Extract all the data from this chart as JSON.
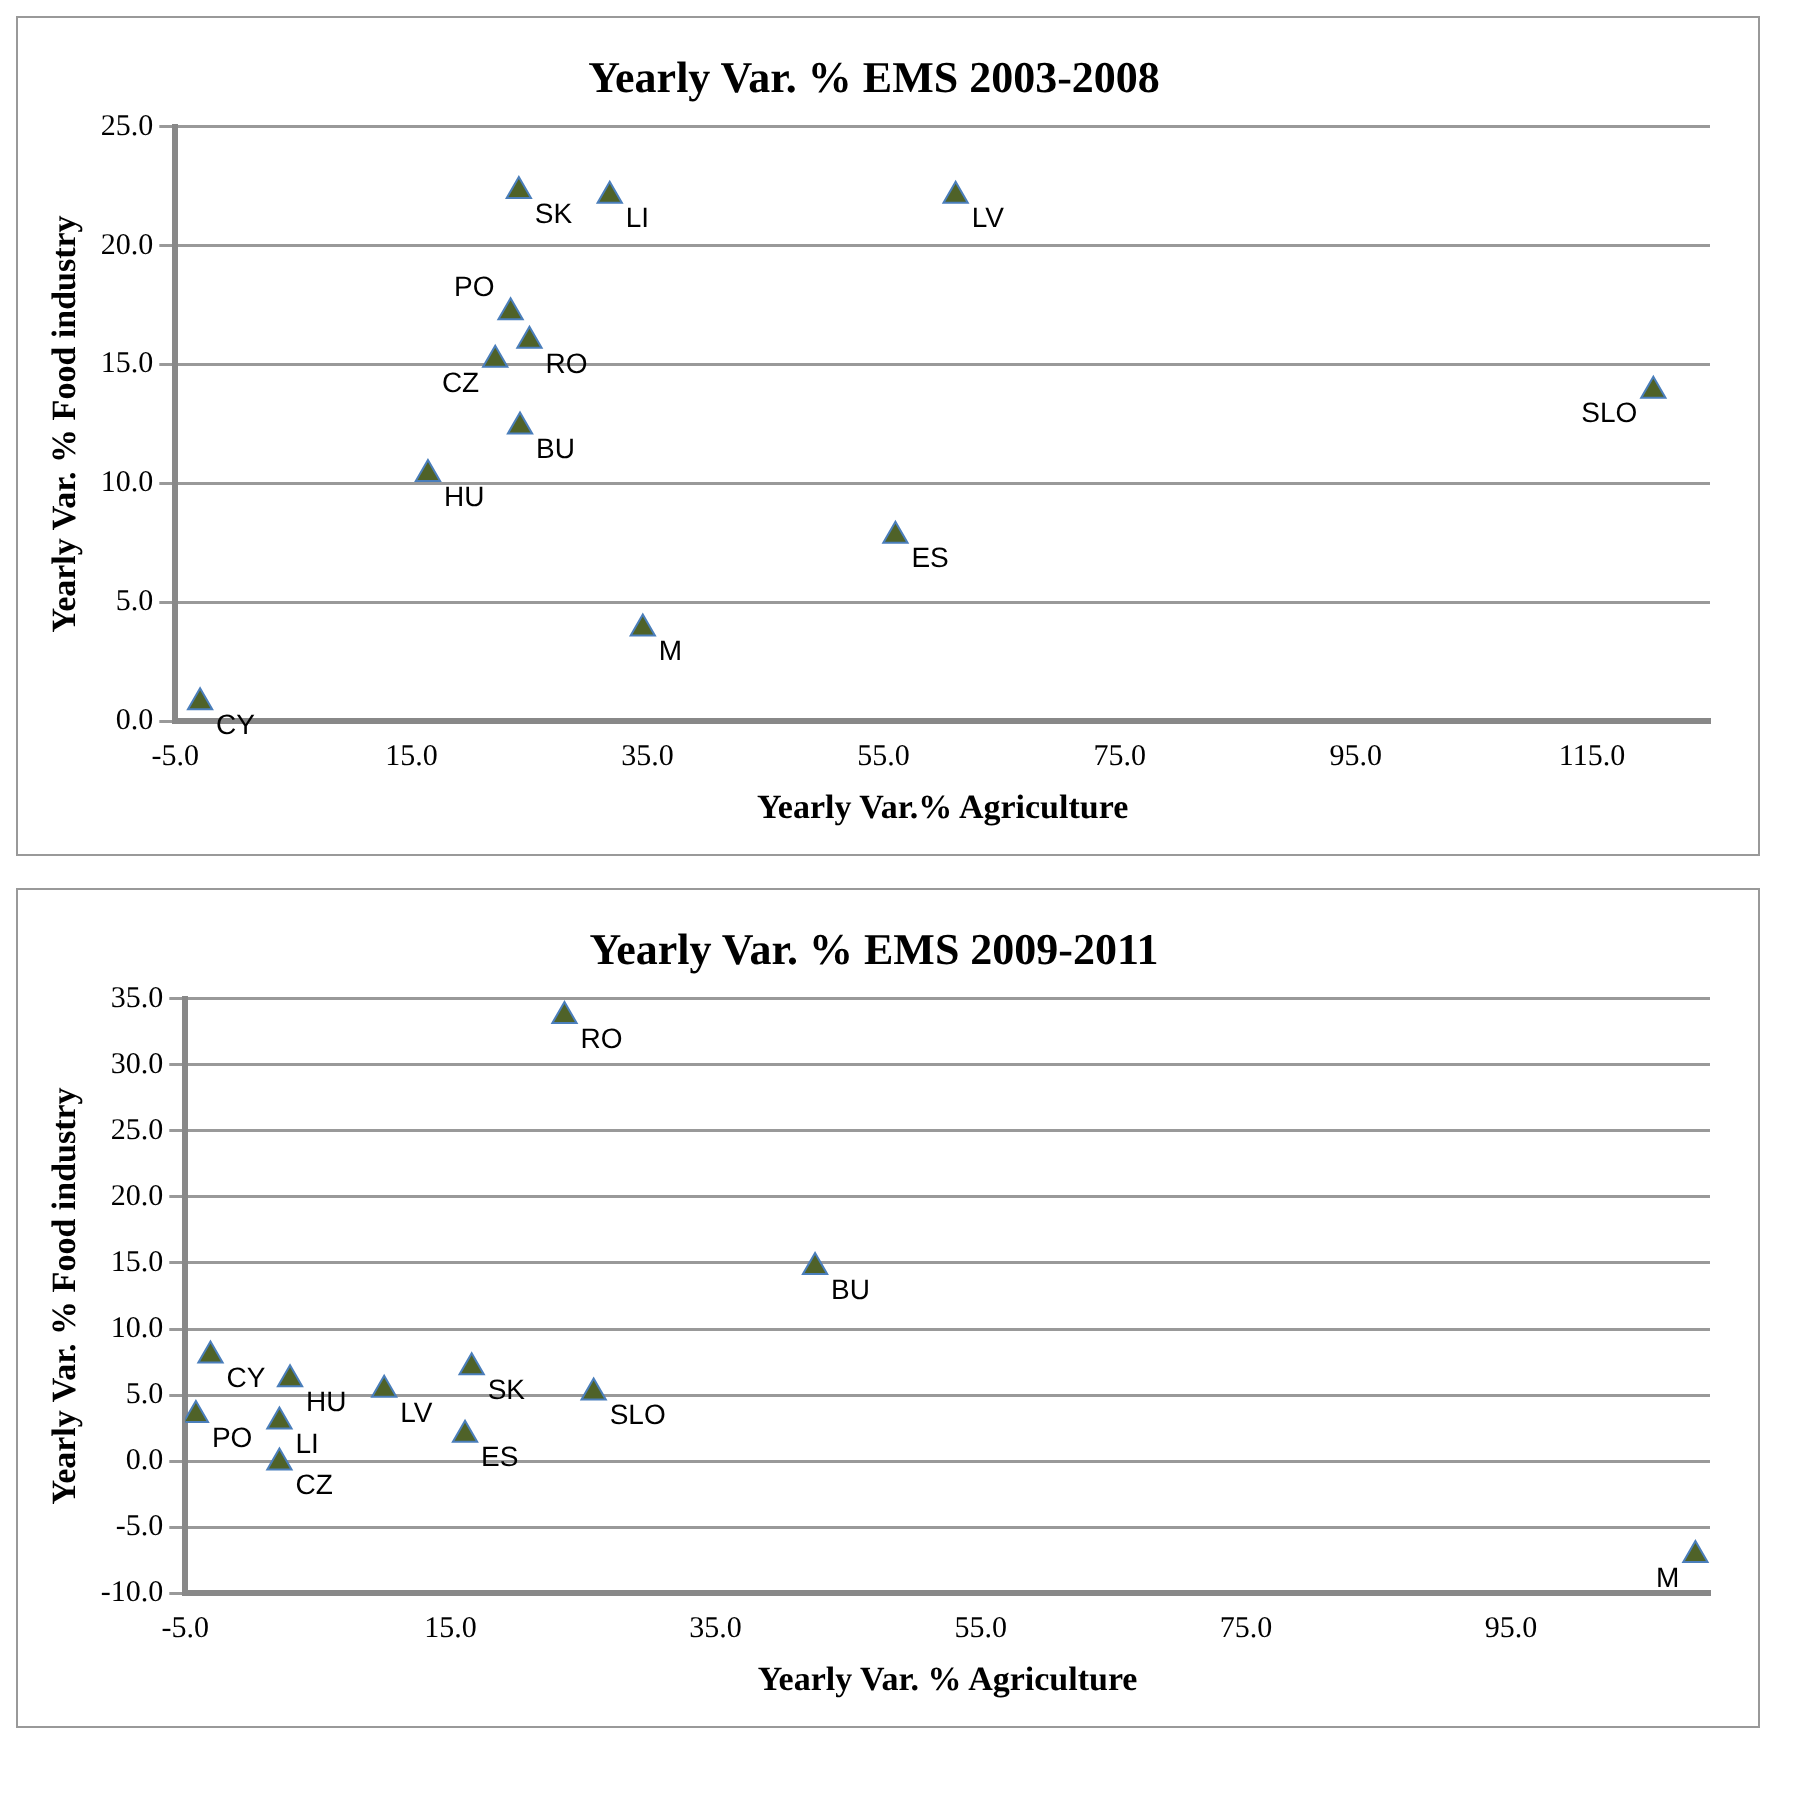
{
  "chart_data": [
    {
      "type": "scatter",
      "title": "Yearly Var. % EMS 2003-2008",
      "xlabel": "Yearly Var.% Agriculture",
      "ylabel": "Yearly Var. % Food industry",
      "color": "#4f6228",
      "marker": "triangle",
      "grid": "y",
      "legend": false,
      "x": [
        24.1,
        31.8,
        61.1,
        23.4,
        25.0,
        22.1,
        24.2,
        16.4,
        56.0,
        120.2,
        34.6,
        -2.9
      ],
      "values": [
        22.3,
        22.1,
        22.1,
        17.2,
        16.0,
        15.2,
        12.4,
        10.4,
        7.8,
        13.9,
        3.9,
        0.8
      ],
      "xlim": [
        -5,
        125
      ],
      "ylim": [
        0,
        25
      ],
      "xticks": [
        {
          "value": -5,
          "label": "-5.0"
        },
        {
          "value": 15,
          "label": "15.0"
        },
        {
          "value": 35,
          "label": "35.0"
        },
        {
          "value": 55,
          "label": "55.0"
        },
        {
          "value": 75,
          "label": "75.0"
        },
        {
          "value": 95,
          "label": "95.0"
        },
        {
          "value": 115,
          "label": "115.0"
        }
      ],
      "yticks": [
        {
          "value": 0,
          "label": "0.0"
        },
        {
          "value": 5,
          "label": "5.0"
        },
        {
          "value": 10,
          "label": "10.0"
        },
        {
          "value": 15,
          "label": "15.0"
        },
        {
          "value": 20,
          "label": "20.0"
        },
        {
          "value": 25,
          "label": "25.0"
        }
      ],
      "annotations": [
        {
          "text": "SK",
          "x": 24.1,
          "y": 22.3
        },
        {
          "text": "LI",
          "x": 31.8,
          "y": 22.1
        },
        {
          "text": "LV",
          "x": 61.1,
          "y": 22.1
        },
        {
          "text": "PO",
          "x": 23.4,
          "y": 17.2
        },
        {
          "text": "RO",
          "x": 25.0,
          "y": 16.0
        },
        {
          "text": "CZ",
          "x": 22.1,
          "y": 15.2
        },
        {
          "text": "BU",
          "x": 24.2,
          "y": 12.4
        },
        {
          "text": "HU",
          "x": 16.4,
          "y": 10.4
        },
        {
          "text": "ES",
          "x": 56.0,
          "y": 7.8
        },
        {
          "text": "SLO",
          "x": 120.2,
          "y": 13.9
        },
        {
          "text": "M",
          "x": 34.6,
          "y": 3.9
        },
        {
          "text": "CY",
          "x": -2.9,
          "y": 0.8
        }
      ]
    },
    {
      "type": "scatter",
      "title": "Yearly Var. % EMS 2009-2011",
      "xlabel": "Yearly Var. % Agriculture",
      "ylabel": "Yearly Var. % Food industry",
      "color": "#4f6228",
      "marker": "triangle",
      "grid": "y",
      "legend": false,
      "x": [
        23.6,
        42.5,
        -3.1,
        2.9,
        10.0,
        16.6,
        25.8,
        -4.2,
        2.1,
        16.1,
        2.1,
        108.9
      ],
      "values": [
        33.7,
        14.7,
        8.0,
        6.2,
        5.4,
        7.1,
        5.2,
        3.5,
        3.0,
        2.0,
        -0.1,
        -7.1
      ],
      "xlim": [
        -5,
        110
      ],
      "ylim": [
        -10,
        35
      ],
      "xticks": [
        {
          "value": -5,
          "label": "-5.0"
        },
        {
          "value": 15,
          "label": "15.0"
        },
        {
          "value": 35,
          "label": "35.0"
        },
        {
          "value": 55,
          "label": "55.0"
        },
        {
          "value": 75,
          "label": "75.0"
        },
        {
          "value": 95,
          "label": "95.0"
        }
      ],
      "yticks": [
        {
          "value": -10,
          "label": "-10.0"
        },
        {
          "value": -5,
          "label": "-5.0"
        },
        {
          "value": 0,
          "label": "0.0"
        },
        {
          "value": 5,
          "label": "5.0"
        },
        {
          "value": 10,
          "label": "10.0"
        },
        {
          "value": 15,
          "label": "15.0"
        },
        {
          "value": 20,
          "label": "20.0"
        },
        {
          "value": 25,
          "label": "25.0"
        },
        {
          "value": 30,
          "label": "30.0"
        },
        {
          "value": 35,
          "label": "35.0"
        }
      ],
      "annotations": [
        {
          "text": "RO",
          "x": 23.6,
          "y": 33.7
        },
        {
          "text": "BU",
          "x": 42.5,
          "y": 14.7
        },
        {
          "text": "CY",
          "x": -3.1,
          "y": 8.0
        },
        {
          "text": "HU",
          "x": 2.9,
          "y": 6.2
        },
        {
          "text": "LV",
          "x": 10.0,
          "y": 5.4
        },
        {
          "text": "SK",
          "x": 16.6,
          "y": 7.1
        },
        {
          "text": "SLO",
          "x": 25.8,
          "y": 5.2
        },
        {
          "text": "PO",
          "x": -4.2,
          "y": 3.5
        },
        {
          "text": "LI",
          "x": 2.1,
          "y": 3.0
        },
        {
          "text": "ES",
          "x": 16.1,
          "y": 2.0
        },
        {
          "text": "CZ",
          "x": 2.1,
          "y": -0.1
        },
        {
          "text": "M",
          "x": 108.9,
          "y": -7.1
        }
      ]
    }
  ]
}
